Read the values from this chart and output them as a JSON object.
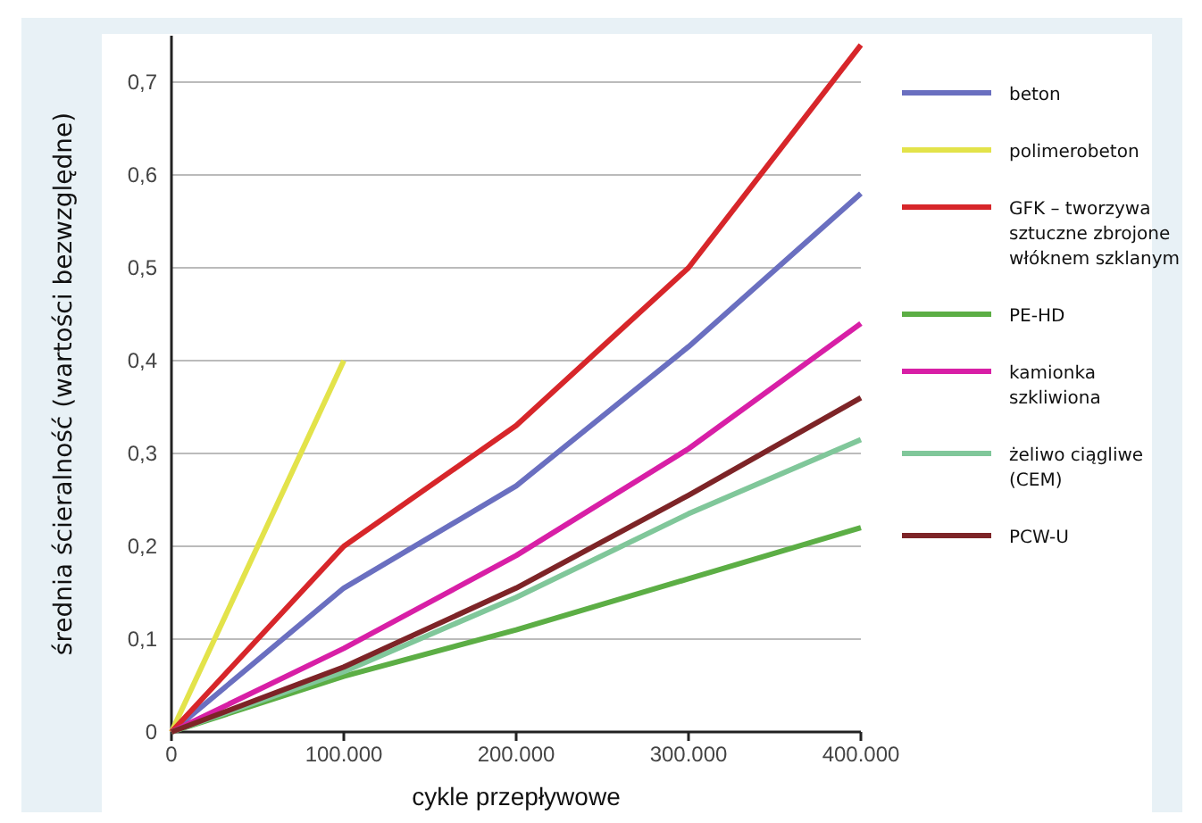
{
  "chart_data": {
    "type": "line",
    "xlabel": "cykle przepływowe",
    "ylabel": "średnia ścieralność (wartości bezwzględne)",
    "x": [
      0,
      100000,
      200000,
      300000,
      400000
    ],
    "xlim": [
      0,
      400000
    ],
    "xticks": [
      0,
      {
        "value": 100000,
        "label": "100.000"
      },
      {
        "value": 200000,
        "label": "200.000"
      },
      {
        "value": 300000,
        "label": "300.000"
      },
      {
        "value": 400000,
        "label": "400.000"
      }
    ],
    "ylim": [
      0,
      0.75
    ],
    "yticks": [
      0,
      {
        "value": 0.1,
        "label": "0,1"
      },
      {
        "value": 0.2,
        "label": "0,2"
      },
      {
        "value": 0.3,
        "label": "0,3"
      },
      {
        "value": 0.4,
        "label": "0,4"
      },
      {
        "value": 0.5,
        "label": "0,5"
      },
      {
        "value": 0.6,
        "label": "0,6"
      },
      {
        "value": 0.7,
        "label": "0,7"
      }
    ],
    "grid": "y",
    "legend": "right",
    "marker": "none",
    "line_style": "solid",
    "series": [
      {
        "name": "beton",
        "color": "#6a6fc0",
        "values": [
          0,
          0.155,
          0.265,
          0.415,
          0.58
        ]
      },
      {
        "name": "polimerobeton",
        "color": "#e3e34a",
        "x": [
          0,
          100000
        ],
        "values": [
          0,
          0.4
        ]
      },
      {
        "name": "GFK – tworzywa sztuczne zbrojone włóknem szklanym",
        "color": "#d7262a",
        "values": [
          0,
          0.2,
          0.33,
          0.5,
          0.74
        ]
      },
      {
        "name": "PE-HD",
        "color": "#5cae45",
        "values": [
          0,
          0.06,
          0.11,
          0.165,
          0.22
        ]
      },
      {
        "name": "kamionka szkliwiona",
        "color": "#d81fa6",
        "values": [
          0,
          0.09,
          0.19,
          0.305,
          0.44
        ]
      },
      {
        "name": "żeliwo ciągliwe (CEM)",
        "color": "#80c79a",
        "values": [
          0,
          0.065,
          0.145,
          0.235,
          0.315
        ]
      },
      {
        "name": "PCW-U",
        "color": "#7d2427",
        "values": [
          0,
          0.07,
          0.155,
          0.255,
          0.36
        ]
      }
    ]
  }
}
